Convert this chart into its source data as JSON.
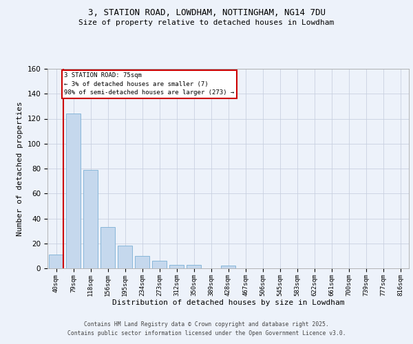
{
  "title1": "3, STATION ROAD, LOWDHAM, NOTTINGHAM, NG14 7DU",
  "title2": "Size of property relative to detached houses in Lowdham",
  "xlabel": "Distribution of detached houses by size in Lowdham",
  "ylabel": "Number of detached properties",
  "categories": [
    "40sqm",
    "79sqm",
    "118sqm",
    "156sqm",
    "195sqm",
    "234sqm",
    "273sqm",
    "312sqm",
    "350sqm",
    "389sqm",
    "428sqm",
    "467sqm",
    "506sqm",
    "545sqm",
    "583sqm",
    "622sqm",
    "661sqm",
    "700sqm",
    "739sqm",
    "777sqm",
    "816sqm"
  ],
  "values": [
    11,
    124,
    79,
    33,
    18,
    10,
    6,
    3,
    3,
    0,
    2,
    0,
    0,
    0,
    0,
    0,
    0,
    0,
    0,
    0,
    0
  ],
  "bar_color": "#c5d8ed",
  "bar_edge_color": "#7aafd4",
  "ylim": [
    0,
    160
  ],
  "yticks": [
    0,
    20,
    40,
    60,
    80,
    100,
    120,
    140,
    160
  ],
  "annotation_text": "3 STATION ROAD: 75sqm\n← 3% of detached houses are smaller (7)\n98% of semi-detached houses are larger (273) →",
  "annotation_box_facecolor": "#ffffff",
  "annotation_box_edgecolor": "#cc0000",
  "red_line_x": 0.425,
  "footer1": "Contains HM Land Registry data © Crown copyright and database right 2025.",
  "footer2": "Contains public sector information licensed under the Open Government Licence v3.0.",
  "bg_color": "#edf2fa",
  "grid_color": "#c8d0e0"
}
